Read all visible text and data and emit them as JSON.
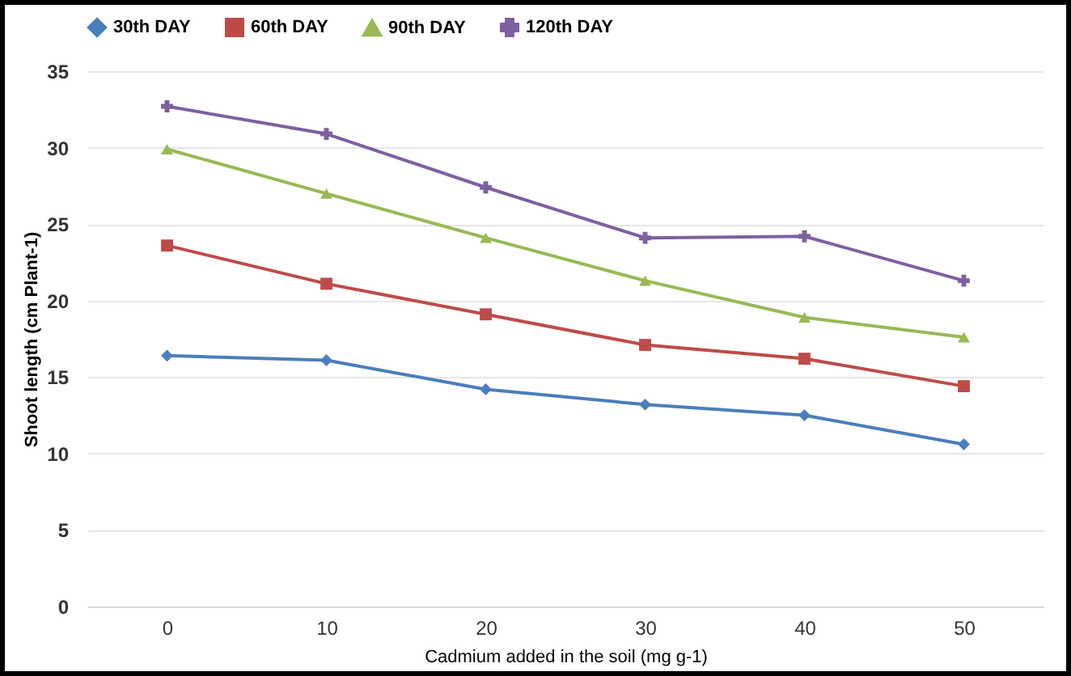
{
  "chart_data": {
    "type": "line",
    "xlabel": "Cadmium added in the soil (mg g-1)",
    "ylabel": "Shoot length (cm Plant-1)",
    "categories": [
      "0",
      "10",
      "20",
      "30",
      "40",
      "50"
    ],
    "series": [
      {
        "name": "30th DAY",
        "color": "#4a7ebb",
        "marker": "diamond",
        "values": [
          16.4,
          16.1,
          14.2,
          13.2,
          12.5,
          10.6
        ]
      },
      {
        "name": "60th DAY",
        "color": "#be4b48",
        "marker": "square",
        "values": [
          23.6,
          21.1,
          19.1,
          17.1,
          16.2,
          14.4
        ]
      },
      {
        "name": "90th DAY",
        "color": "#98b954",
        "marker": "triangle",
        "values": [
          29.9,
          27.0,
          24.1,
          21.3,
          18.9,
          17.6
        ]
      },
      {
        "name": "120th DAY",
        "color": "#7d60a0",
        "marker": "cross",
        "values": [
          32.7,
          30.9,
          27.4,
          24.1,
          24.2,
          21.3
        ]
      }
    ],
    "ylim": [
      0,
      35
    ],
    "yticks": [
      0,
      5,
      10,
      15,
      20,
      25,
      30,
      35
    ],
    "grid": "y",
    "legend": "top",
    "line_style": "solid"
  }
}
